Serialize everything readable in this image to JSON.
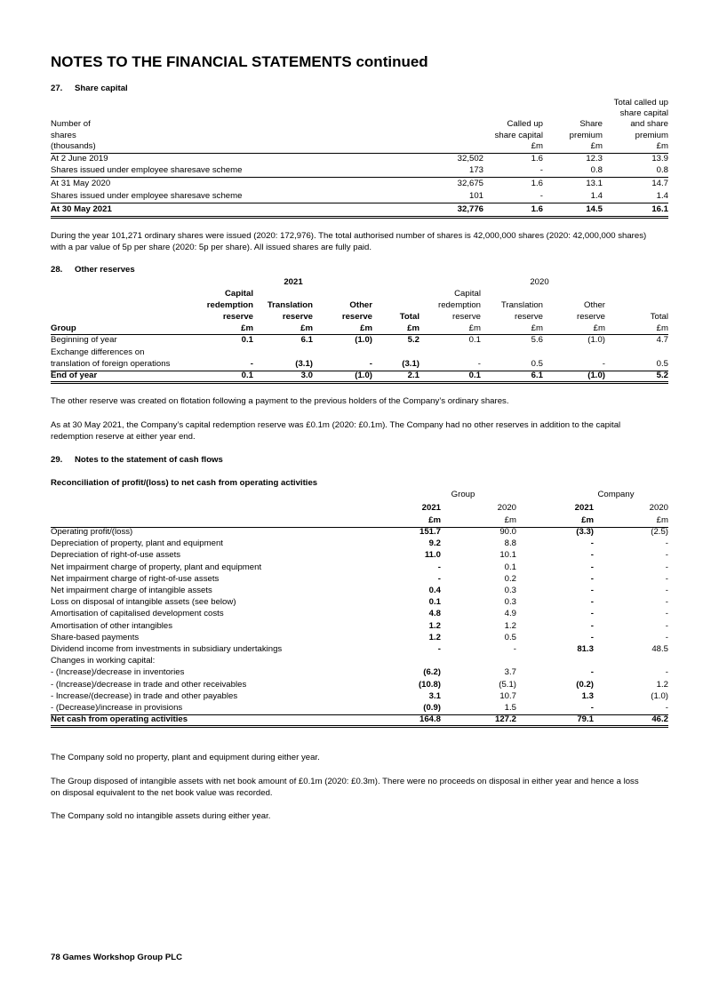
{
  "header": {
    "title": "NOTES TO THE FINANCIAL STATEMENTS continued"
  },
  "note27": {
    "number": "27.",
    "title": "Share capital",
    "table": {
      "columns": [
        [
          "Number of",
          "shares",
          "(thousands)"
        ],
        [
          "Called up",
          "share capital",
          "£m"
        ],
        [
          "Share",
          "premium",
          "£m"
        ],
        [
          "Total called up",
          "share capital",
          "and share",
          "premium",
          "£m"
        ]
      ],
      "rows": [
        [
          "At 2 June 2019",
          "32,502",
          "1.6",
          "12.3",
          "13.9"
        ],
        [
          "Shares issued under employee sharesave scheme",
          "173",
          "-",
          "0.8",
          "0.8"
        ],
        [
          "At 31 May 2020",
          "32,675",
          "1.6",
          "13.1",
          "14.7"
        ],
        [
          "Shares issued under employee sharesave scheme",
          "101",
          "-",
          "1.4",
          "1.4"
        ],
        [
          "At 30 May 2021",
          "32,776",
          "1.6",
          "14.5",
          "16.1"
        ]
      ]
    },
    "paragraph": [
      "During the year 101,271 ordinary shares were issued (2020: 172,976). The total authorised number of shares is 42,000,000 shares (2020: 42,000,000 shares)",
      "with a par value of 5p per share (2020: 5p per share). All issued shares are fully paid."
    ]
  },
  "note28": {
    "number": "28.",
    "title": "Other reserves",
    "table": {
      "years": [
        "2021",
        "2020"
      ],
      "columns": [
        [
          "Group"
        ],
        [
          "Capital",
          "redemption",
          "reserve",
          "£m"
        ],
        [
          "Translation",
          "reserve",
          "£m"
        ],
        [
          "Other",
          "reserve",
          "£m"
        ],
        [
          "Total",
          "£m"
        ],
        [
          "Capital",
          "redemption",
          "reserve",
          "£m"
        ],
        [
          "Translation",
          "reserve",
          "£m"
        ],
        [
          "Other",
          "reserve",
          "£m"
        ],
        [
          "Total",
          "£m"
        ]
      ],
      "rows": [
        [
          "Beginning of year",
          "0.1",
          "6.1",
          "(1.0)",
          "5.2",
          "0.1",
          "5.6",
          "(1.0)",
          "4.7"
        ],
        [
          "Exchange differences on"
        ],
        [
          "translation of foreign operations",
          "-",
          "(3.1)",
          "-",
          "(3.1)",
          "-",
          "0.5",
          "-",
          "0.5"
        ],
        [
          "End of year",
          "0.1",
          "3.0",
          "(1.0)",
          "2.1",
          "0.1",
          "6.1",
          "(1.0)",
          "5.2"
        ]
      ]
    },
    "paragraphs": [
      [
        "The other reserve was created on flotation following a payment to the previous holders of the Company’s ordinary shares."
      ],
      [
        "As at 30 May 2021, the Company’s capital redemption reserve was £0.1m (2020: £0.1m). The Company had no other reserves in addition to the capital",
        "redemption reserve at either year end."
      ]
    ]
  },
  "note29": {
    "number": "29.",
    "title": "Notes to the statement of cash flows",
    "subheading": "Reconciliation of profit/(loss) to net cash from operating activities",
    "table": {
      "groups": [
        "Group",
        "Company"
      ],
      "columns": [
        [
          "2021",
          "£m"
        ],
        [
          "2020",
          "£m"
        ],
        [
          "2021",
          "£m"
        ],
        [
          "2020",
          "£m"
        ]
      ],
      "rows": [
        [
          "Operating profit/(loss)",
          "151.7",
          "90.0",
          "(3.3)",
          "(2.5)"
        ],
        [
          "Depreciation of property, plant and equipment",
          "9.2",
          "8.8",
          "-",
          "-"
        ],
        [
          "Depreciation of right-of-use assets",
          "11.0",
          "10.1",
          "-",
          "-"
        ],
        [
          "Net impairment charge of property, plant and equipment",
          "-",
          "0.1",
          "-",
          "-"
        ],
        [
          "Net impairment charge of right-of-use assets",
          "-",
          "0.2",
          "-",
          "-"
        ],
        [
          "Net impairment charge of intangible assets",
          "0.4",
          "0.3",
          "-",
          "-"
        ],
        [
          "Loss on disposal of intangible assets (see below)",
          "0.1",
          "0.3",
          "-",
          "-"
        ],
        [
          "Amortisation of capitalised development costs",
          "4.8",
          "4.9",
          "-",
          "-"
        ],
        [
          "Amortisation of other intangibles",
          "1.2",
          "1.2",
          "-",
          "-"
        ],
        [
          "Share-based payments",
          "1.2",
          "0.5",
          "-",
          "-"
        ],
        [
          "Dividend income from investments in subsidiary undertakings",
          "-",
          "-",
          "81.3",
          "48.5"
        ],
        [
          "Changes in working capital:"
        ],
        [
          "- (Increase)/decrease in inventories",
          "(6.2)",
          "3.7",
          "-",
          "-"
        ],
        [
          "- (Increase)/decrease in trade and other receivables",
          "(10.8)",
          "(5.1)",
          "(0.2)",
          "1.2"
        ],
        [
          "- Increase/(decrease) in trade and other payables",
          "3.1",
          "10.7",
          "1.3",
          "(1.0)"
        ],
        [
          "- (Decrease)/increase in provisions",
          "(0.9)",
          "1.5",
          "-",
          "-"
        ],
        [
          "Net cash from operating activities",
          "164.8",
          "127.2",
          "79.1",
          "46.2"
        ]
      ]
    },
    "paragraphs": [
      [
        "The Company sold no property, plant and equipment during either year."
      ],
      [
        "The Group disposed of intangible assets with net book amount of £0.1m (2020: £0.3m). There were no proceeds on disposal in either year and hence a loss",
        "on disposal equivalent to the net book value was recorded."
      ],
      [
        "The Company sold no intangible assets during either year."
      ]
    ]
  },
  "footer": {
    "text": "78 Games Workshop Group PLC"
  }
}
